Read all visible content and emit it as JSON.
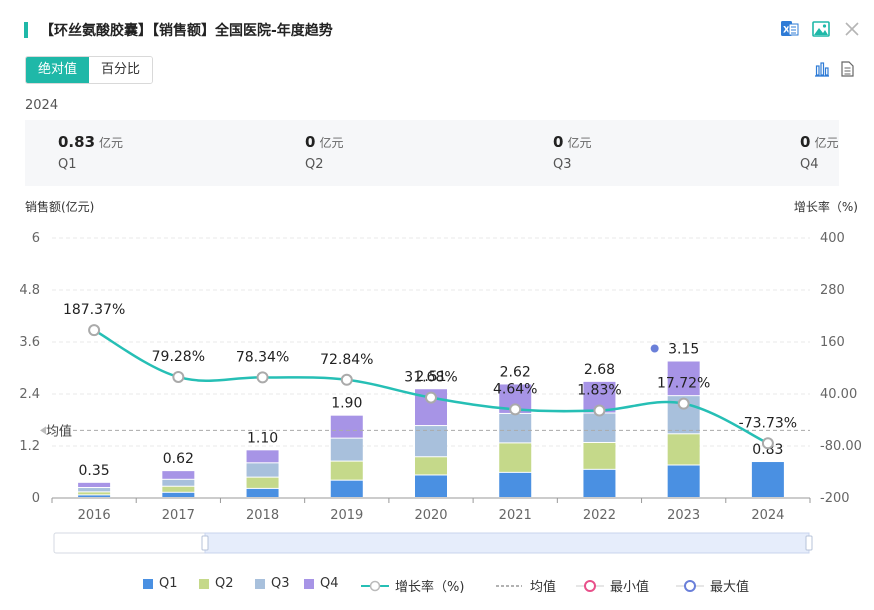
{
  "header": {
    "title": "【环丝氨酸胶囊】【销售额】全国医院-年度趋势",
    "icons": [
      "excel-icon",
      "image-icon",
      "close-icon"
    ]
  },
  "toggle": {
    "absolute_label": "绝对值",
    "percent_label": "百分比"
  },
  "tools": [
    "bar-chart-icon",
    "table-view-icon"
  ],
  "quarter_panel": {
    "year": "2024",
    "unit": "亿元",
    "quarters": [
      {
        "value": "0.83",
        "label": "Q1"
      },
      {
        "value": "0",
        "label": "Q2"
      },
      {
        "value": "0",
        "label": "Q3"
      },
      {
        "value": "0",
        "label": "Q4"
      }
    ]
  },
  "colors": {
    "accent": "#1fb8a8",
    "q1": "#4a90e2",
    "q2": "#c5d98a",
    "q3": "#a8c0dc",
    "q4": "#a794e6",
    "growth": "#26bfb5"
  },
  "chart_data": {
    "type": "bar",
    "stacked": true,
    "ylabel_left": "销售额(亿元)",
    "ylabel_right": "增长率（%)",
    "ylim_left": [
      0,
      6
    ],
    "yticks_left": [
      "0",
      "1.2",
      "2.4",
      "3.6",
      "4.8",
      "6"
    ],
    "ylim_right": [
      -200,
      400
    ],
    "yticks_right": [
      "-200",
      "-80.00",
      "40.00",
      "160",
      "280",
      "400"
    ],
    "categories": [
      "2016",
      "2017",
      "2018",
      "2019",
      "2020",
      "2021",
      "2022",
      "2023",
      "2024"
    ],
    "series": [
      {
        "name": "Q1",
        "values": [
          0.06,
          0.12,
          0.21,
          0.4,
          0.52,
          0.58,
          0.65,
          0.75,
          0.83
        ]
      },
      {
        "name": "Q2",
        "values": [
          0.07,
          0.14,
          0.26,
          0.44,
          0.42,
          0.68,
          0.62,
          0.72,
          0
        ]
      },
      {
        "name": "Q3",
        "values": [
          0.1,
          0.16,
          0.33,
          0.53,
          0.72,
          0.68,
          0.68,
          0.88,
          0
        ]
      },
      {
        "name": "Q4",
        "values": [
          0.12,
          0.2,
          0.3,
          0.53,
          0.85,
          0.68,
          0.73,
          0.8,
          0
        ]
      }
    ],
    "totals": [
      0.35,
      0.62,
      1.1,
      1.9,
      2.51,
      2.62,
      2.68,
      3.15,
      0.83
    ],
    "total_labels": [
      "0.35",
      "0.62",
      "1.10",
      "1.90",
      "2.51",
      "2.62",
      "2.68",
      "3.15",
      "0.83"
    ],
    "growth": {
      "name": "增长率（%)",
      "values": [
        187.37,
        79.28,
        78.34,
        72.84,
        31.68,
        4.64,
        1.83,
        17.72,
        -73.73
      ],
      "labels": [
        "187.37%",
        "79.28%",
        "78.34%",
        "72.84%",
        "31.68%",
        "4.64%",
        "1.83%",
        "17.72%",
        "-73.73%"
      ]
    },
    "mean": {
      "value": 1.56,
      "label": "均值"
    },
    "legend": [
      {
        "name": "Q1",
        "kind": "bar",
        "color": "#4a90e2"
      },
      {
        "name": "Q2",
        "kind": "bar",
        "color": "#c5d98a"
      },
      {
        "name": "Q3",
        "kind": "bar",
        "color": "#a8c0dc"
      },
      {
        "name": "Q4",
        "kind": "bar",
        "color": "#a794e6"
      },
      {
        "name": "增长率（%)",
        "kind": "line",
        "color": "#26bfb5"
      },
      {
        "name": "均值",
        "kind": "dash",
        "color": "#999999"
      },
      {
        "name": "最小值",
        "kind": "circle",
        "color": "#e8508a"
      },
      {
        "name": "最大值",
        "kind": "circle",
        "color": "#6a7fd9"
      }
    ]
  }
}
